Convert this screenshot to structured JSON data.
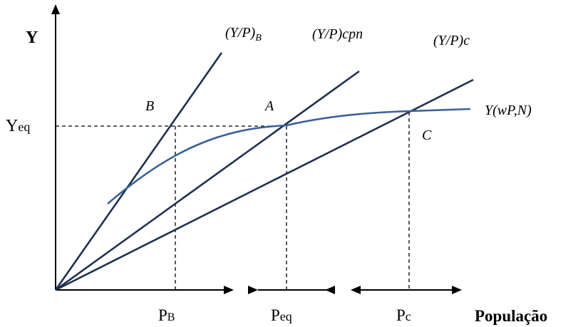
{
  "axes": {
    "y_label": "Y",
    "x_label": "População"
  },
  "curves": {
    "line_b_label": {
      "main": "(Y/P)",
      "sub": "B"
    },
    "line_cpn_label": "(Y/P)cpn",
    "line_c_label": "(Y/P)c",
    "production_label": "Y(wP,N)"
  },
  "points": {
    "b": "B",
    "a": "A",
    "c": "C"
  },
  "levels": {
    "y_eq": {
      "main": "Y",
      "sub": "eq"
    },
    "p_b": {
      "main": "P",
      "sub": "B"
    },
    "p_eq": {
      "main": "P",
      "sub": "eq"
    },
    "p_c": {
      "main": "P",
      "sub": "c"
    }
  },
  "colors": {
    "axis": "#000000",
    "ray": "#1f2f4f",
    "production_curve": "#3a6296",
    "guide": "#000000"
  }
}
